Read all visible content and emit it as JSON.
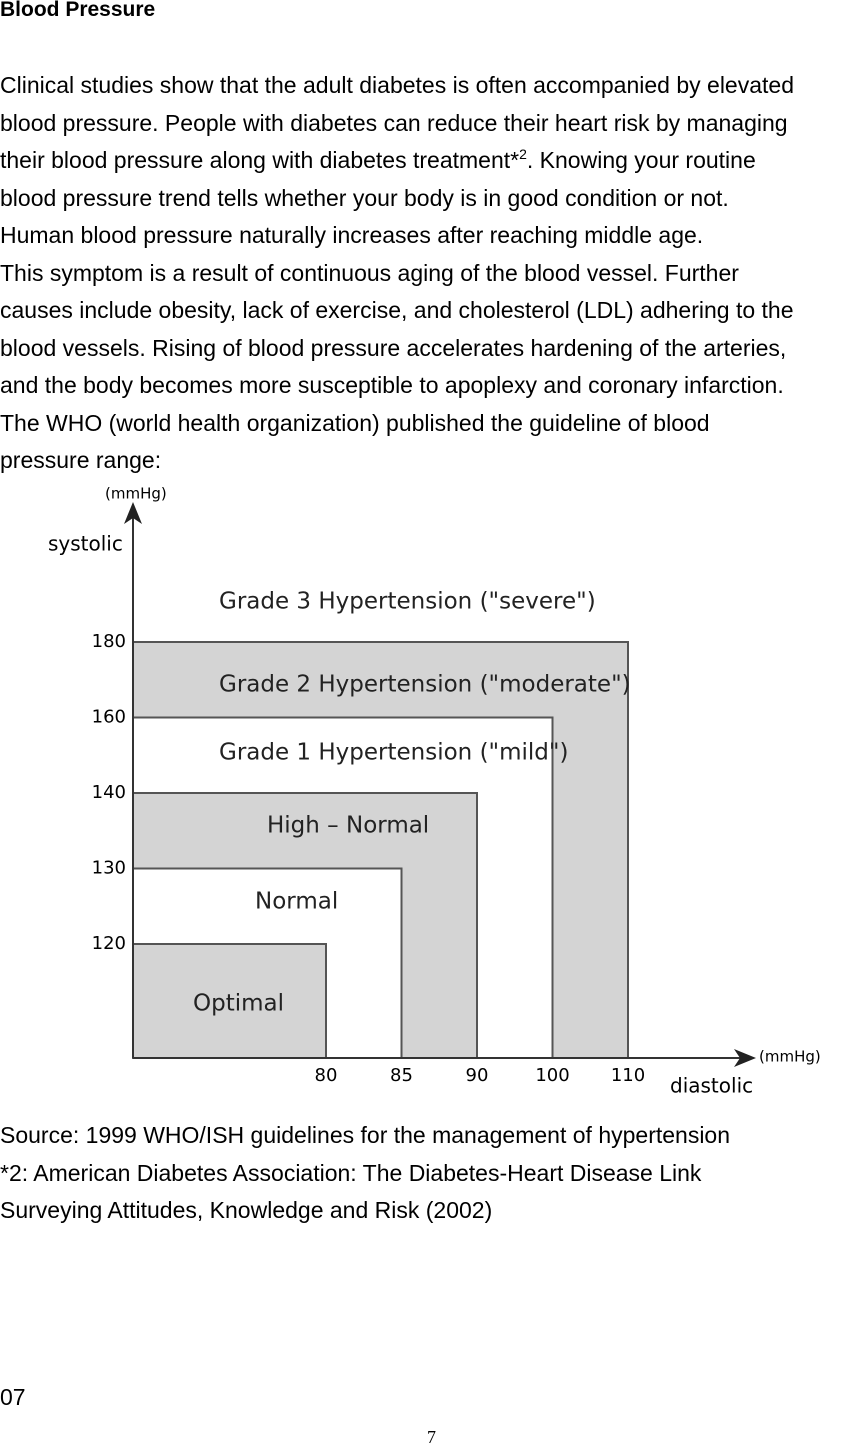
{
  "heading": "Blood Pressure",
  "body": {
    "lines": [
      "Clinical studies show that the adult diabetes is often accompanied by elevated",
      "blood pressure. People with diabetes can reduce their heart risk by managing",
      {
        "before": "their blood pressure along with diabetes treatment*",
        "sup": "2",
        "after": ". Knowing your routine"
      },
      "blood pressure trend tells whether your body is in good condition or not.",
      "Human blood pressure naturally increases after reaching middle age.",
      "This symptom is a result of continuous aging of the blood vessel. Further",
      "causes include obesity, lack of exercise, and cholesterol (LDL) adhering to the",
      "blood vessels. Rising of blood pressure accelerates hardening of the arteries,",
      "and the body becomes more susceptible to apoplexy and coronary infarction.",
      "The WHO (world health organization) published the guideline of blood",
      "pressure range:"
    ]
  },
  "figure": {
    "y_unit": "(mmHg)",
    "y_label": "systolic",
    "x_unit": "(mmHg)",
    "x_label": "diastolic",
    "yticks": [
      120,
      130,
      140,
      160,
      180
    ],
    "xticks": [
      80,
      85,
      90,
      100,
      110
    ],
    "zones": [
      "Optimal",
      "Normal",
      "High – Normal",
      "Grade 1 Hypertension (\"mild\")",
      "Grade 2 Hypertension (\"moderate\")",
      "Grade 3 Hypertension (\"severe\")"
    ]
  },
  "notes": [
    "Source: 1999 WHO/ISH guidelines for the management of hypertension",
    "*2: American Diabetes Association: The Diabetes-Heart Disease Link",
    "Surveying Attitudes, Knowledge and Risk (2002)"
  ],
  "page_label": "07",
  "page_number": "7"
}
